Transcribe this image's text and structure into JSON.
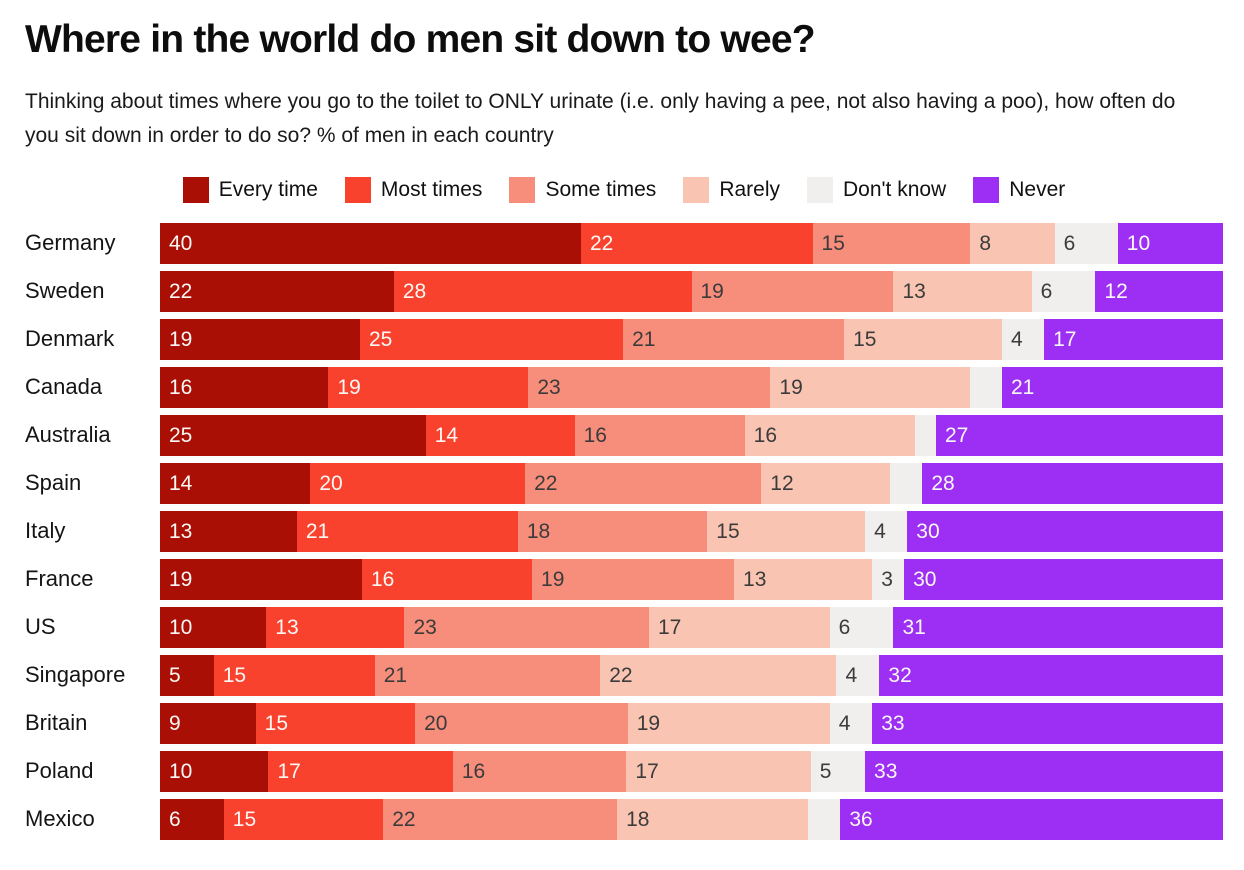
{
  "title": "Where in the world do men sit down to wee?",
  "subtitle": "Thinking about times where you go to the toilet to ONLY urinate (i.e. only having a pee, not also having a poo), how often do you sit down in order to do so? % of men in each country",
  "colors": {
    "every_time": "#a90f05",
    "most_times": "#f9422e",
    "some_times": "#f78d7b",
    "rarely": "#f9c4b2",
    "dont_know": "#f1efed",
    "never": "#9c2ff3",
    "dark_text": "#3b3b3b",
    "light_text": "#ffffff"
  },
  "legend": [
    {
      "key": "every_time",
      "label": "Every time",
      "dark_text": false
    },
    {
      "key": "most_times",
      "label": "Most times",
      "dark_text": false
    },
    {
      "key": "some_times",
      "label": "Some times",
      "dark_text": true
    },
    {
      "key": "rarely",
      "label": "Rarely",
      "dark_text": true
    },
    {
      "key": "dont_know",
      "label": "Don't know",
      "dark_text": true
    },
    {
      "key": "never",
      "label": "Never",
      "dark_text": false
    }
  ],
  "chart_data": {
    "type": "bar",
    "variant": "stacked-horizontal",
    "unit": "% of men in each country",
    "series_order": [
      "Every time",
      "Most times",
      "Some times",
      "Rarely",
      "Don't know",
      "Never"
    ],
    "legend_position": "top-center",
    "grid": false,
    "note": "Each row normalized to full bar width; segments without visible labels use empty label strings (values estimated from segment widths).",
    "rows": [
      {
        "country": "Germany",
        "values": [
          40,
          22,
          15,
          8,
          6,
          10
        ],
        "labels": [
          "40",
          "22",
          "15",
          "8",
          "6",
          "10"
        ]
      },
      {
        "country": "Sweden",
        "values": [
          22,
          28,
          19,
          13,
          6,
          12
        ],
        "labels": [
          "22",
          "28",
          "19",
          "13",
          "6",
          "12"
        ]
      },
      {
        "country": "Denmark",
        "values": [
          19,
          25,
          21,
          15,
          4,
          17
        ],
        "labels": [
          "19",
          "25",
          "21",
          "15",
          "4",
          "17"
        ]
      },
      {
        "country": "Canada",
        "values": [
          16,
          19,
          23,
          19,
          3,
          21
        ],
        "labels": [
          "16",
          "19",
          "23",
          "19",
          "",
          "21"
        ]
      },
      {
        "country": "Australia",
        "values": [
          25,
          14,
          16,
          16,
          2,
          27
        ],
        "labels": [
          "25",
          "14",
          "16",
          "16",
          "",
          "27"
        ]
      },
      {
        "country": "Spain",
        "values": [
          14,
          20,
          22,
          12,
          3,
          28
        ],
        "labels": [
          "14",
          "20",
          "22",
          "12",
          "",
          "28"
        ]
      },
      {
        "country": "Italy",
        "values": [
          13,
          21,
          18,
          15,
          4,
          30
        ],
        "labels": [
          "13",
          "21",
          "18",
          "15",
          "4",
          "30"
        ]
      },
      {
        "country": "France",
        "values": [
          19,
          16,
          19,
          13,
          3,
          30
        ],
        "labels": [
          "19",
          "16",
          "19",
          "13",
          "3",
          "30"
        ]
      },
      {
        "country": "US",
        "values": [
          10,
          13,
          23,
          17,
          6,
          31
        ],
        "labels": [
          "10",
          "13",
          "23",
          "17",
          "6",
          "31"
        ]
      },
      {
        "country": "Singapore",
        "values": [
          5,
          15,
          21,
          22,
          4,
          32
        ],
        "labels": [
          "5",
          "15",
          "21",
          "22",
          "4",
          "32"
        ]
      },
      {
        "country": "Britain",
        "values": [
          9,
          15,
          20,
          19,
          4,
          33
        ],
        "labels": [
          "9",
          "15",
          "20",
          "19",
          "4",
          "33"
        ]
      },
      {
        "country": "Poland",
        "values": [
          10,
          17,
          16,
          17,
          5,
          33
        ],
        "labels": [
          "10",
          "17",
          "16",
          "17",
          "5",
          "33"
        ]
      },
      {
        "country": "Mexico",
        "values": [
          6,
          15,
          22,
          18,
          3,
          36
        ],
        "labels": [
          "6",
          "15",
          "22",
          "18",
          "",
          "36"
        ]
      }
    ]
  }
}
